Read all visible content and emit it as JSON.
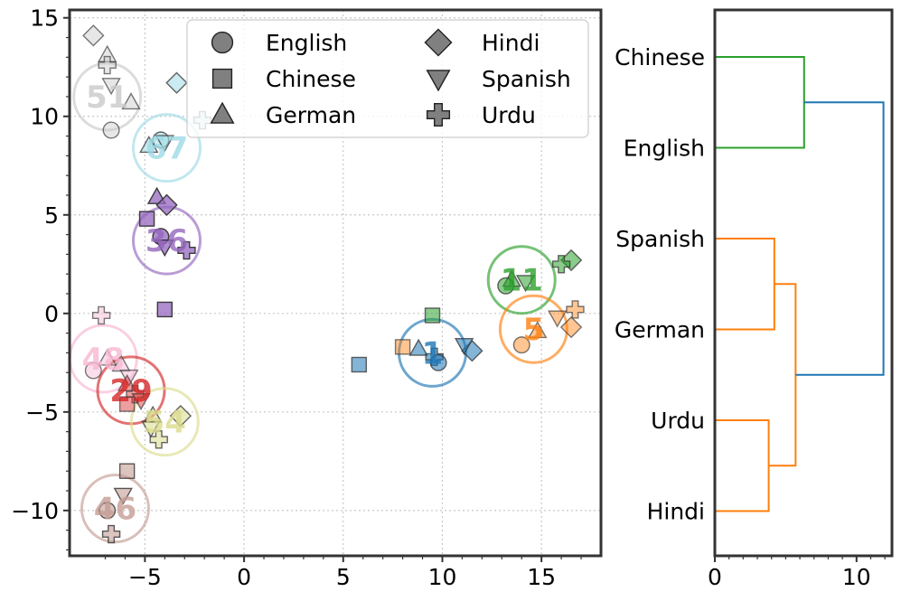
{
  "chart_data": [
    {
      "type": "scatter",
      "title": "",
      "xlabel": "",
      "ylabel": "",
      "xlim": [
        -8.8,
        18
      ],
      "ylim": [
        -12.3,
        15.4
      ],
      "xticks": [
        -5,
        0,
        5,
        10,
        15
      ],
      "xtick_labels": [
        "−5",
        "0",
        "5",
        "10",
        "15"
      ],
      "yticks": [
        15,
        10,
        5,
        0,
        -5,
        -10
      ],
      "ytick_labels": [
        "15",
        "10",
        "5",
        "0",
        "−5",
        "−10"
      ],
      "grid": true,
      "legend_position": "top-right",
      "legend": [
        {
          "label": "English",
          "marker": "circle"
        },
        {
          "label": "Chinese",
          "marker": "square"
        },
        {
          "label": "German",
          "marker": "triangle-up"
        },
        {
          "label": "Hindi",
          "marker": "diamond"
        },
        {
          "label": "Spanish",
          "marker": "triangle-down"
        },
        {
          "label": "Urdu",
          "marker": "plus"
        }
      ],
      "clusters": [
        {
          "label": "51",
          "center": [
            -6.9,
            11
          ],
          "color": "#c9c9c9",
          "opacity": 0.45,
          "points": [
            {
              "x": -7.6,
              "y": 14.1,
              "marker": "diamond"
            },
            {
              "x": -6.9,
              "y": 13.1,
              "marker": "triangle-up"
            },
            {
              "x": -6.9,
              "y": 12.6,
              "marker": "plus"
            },
            {
              "x": -6.7,
              "y": 11.6,
              "marker": "triangle-down"
            },
            {
              "x": -5.7,
              "y": 10.7,
              "marker": "triangle-up"
            },
            {
              "x": -6.7,
              "y": 9.3,
              "marker": "circle"
            }
          ]
        },
        {
          "label": "67",
          "center": [
            -3.9,
            8.4
          ],
          "color": "#9edae5",
          "opacity": 0.55,
          "points": [
            {
              "x": -3.4,
              "y": 11.7,
              "marker": "diamond"
            },
            {
              "x": -2.1,
              "y": 9.8,
              "marker": "plus"
            },
            {
              "x": -4.2,
              "y": 8.8,
              "marker": "circle"
            },
            {
              "x": -4,
              "y": 8.7,
              "marker": "triangle-down"
            },
            {
              "x": -4.8,
              "y": 8.5,
              "marker": "triangle-up"
            }
          ]
        },
        {
          "label": "36",
          "center": [
            -3.9,
            3.7
          ],
          "color": "#9467bd",
          "opacity": 0.75,
          "points": [
            {
              "x": -4.4,
              "y": 5.9,
              "marker": "triangle-up"
            },
            {
              "x": -3.9,
              "y": 5.5,
              "marker": "diamond"
            },
            {
              "x": -4.9,
              "y": 4.8,
              "marker": "square"
            },
            {
              "x": -4.2,
              "y": 3.9,
              "marker": "circle"
            },
            {
              "x": -4,
              "y": 3.4,
              "marker": "triangle-down"
            },
            {
              "x": -2.9,
              "y": 3.2,
              "marker": "plus"
            },
            {
              "x": -4,
              "y": 0.2,
              "marker": "square"
            }
          ]
        },
        {
          "label": "11",
          "center": [
            14,
            1.7
          ],
          "color": "#2ca02c",
          "opacity": 0.55,
          "points": [
            {
              "x": 16.5,
              "y": 2.7,
              "marker": "diamond"
            },
            {
              "x": 16,
              "y": 2.5,
              "marker": "plus"
            },
            {
              "x": 13.5,
              "y": 1.7,
              "marker": "triangle-up"
            },
            {
              "x": 14.2,
              "y": 1.6,
              "marker": "triangle-down"
            },
            {
              "x": 13.2,
              "y": 1.4,
              "marker": "circle"
            },
            {
              "x": 9.5,
              "y": -0.1,
              "marker": "square"
            }
          ]
        },
        {
          "label": "5",
          "center": [
            14.6,
            -0.8
          ],
          "color": "#ff7f0e",
          "opacity": 0.45,
          "points": [
            {
              "x": 16.7,
              "y": 0.2,
              "marker": "plus"
            },
            {
              "x": 15.8,
              "y": -0.2,
              "marker": "triangle-down"
            },
            {
              "x": 16.5,
              "y": -0.7,
              "marker": "diamond"
            },
            {
              "x": 14.8,
              "y": -0.9,
              "marker": "triangle-up"
            },
            {
              "x": 14,
              "y": -1.6,
              "marker": "circle"
            },
            {
              "x": 8,
              "y": -1.7,
              "marker": "square"
            }
          ]
        },
        {
          "label": "1",
          "center": [
            9.5,
            -2
          ],
          "color": "#1f77b4",
          "opacity": 0.55,
          "points": [
            {
              "x": 11.5,
              "y": -1.9,
              "marker": "diamond"
            },
            {
              "x": 11.1,
              "y": -1.6,
              "marker": "triangle-down"
            },
            {
              "x": 8.8,
              "y": -1.8,
              "marker": "triangle-up"
            },
            {
              "x": 9.6,
              "y": -2.2,
              "marker": "plus"
            },
            {
              "x": 9.8,
              "y": -2.5,
              "marker": "circle"
            },
            {
              "x": 5.8,
              "y": -2.6,
              "marker": "square"
            }
          ]
        },
        {
          "label": "48",
          "center": [
            -7.1,
            -2.3
          ],
          "color": "#f7b6d2",
          "opacity": 0.45,
          "points": [
            {
              "x": -7.2,
              "y": -0.1,
              "marker": "plus"
            },
            {
              "x": -6.9,
              "y": -2.3,
              "marker": "triangle-up"
            },
            {
              "x": -6.2,
              "y": -2.6,
              "marker": "triangle-up"
            },
            {
              "x": -7.6,
              "y": -2.9,
              "marker": "circle"
            },
            {
              "x": -5.8,
              "y": -3.2,
              "marker": "triangle-down"
            }
          ]
        },
        {
          "label": "29",
          "center": [
            -5.7,
            -3.9
          ],
          "color": "#d62728",
          "opacity": 0.45,
          "points": [
            {
              "x": -5.9,
              "y": -3.6,
              "marker": "triangle-up"
            },
            {
              "x": -5.5,
              "y": -4.1,
              "marker": "plus"
            },
            {
              "x": -5.9,
              "y": -4.6,
              "marker": "square"
            },
            {
              "x": -5.2,
              "y": -4.4,
              "marker": "triangle-down"
            }
          ]
        },
        {
          "label": "54",
          "center": [
            -4,
            -5.5
          ],
          "color": "#dbdb8d",
          "opacity": 0.55,
          "points": [
            {
              "x": -4.6,
              "y": -5.2,
              "marker": "triangle-up"
            },
            {
              "x": -3.2,
              "y": -5.2,
              "marker": "diamond"
            },
            {
              "x": -4.7,
              "y": -5.8,
              "marker": "triangle-down"
            },
            {
              "x": -4.3,
              "y": -6.4,
              "marker": "plus"
            }
          ]
        },
        {
          "label": "46",
          "center": [
            -6.5,
            -9.9
          ],
          "color": "#c49c94",
          "opacity": 0.6,
          "points": [
            {
              "x": -5.9,
              "y": -8,
              "marker": "square"
            },
            {
              "x": -6.1,
              "y": -9.2,
              "marker": "triangle-down"
            },
            {
              "x": -6.9,
              "y": -10,
              "marker": "circle"
            },
            {
              "x": -6.7,
              "y": -11.2,
              "marker": "plus"
            }
          ]
        }
      ]
    },
    {
      "type": "dendrogram",
      "title": "",
      "xlabel": "",
      "ylabel": "",
      "xlim": [
        0,
        12.5
      ],
      "xticks": [
        0,
        10
      ],
      "xtick_labels": [
        "0",
        "10"
      ],
      "leaves": [
        "Chinese",
        "English",
        "Spanish",
        "German",
        "Urdu",
        "Hindi"
      ],
      "merges": [
        {
          "left": "Urdu",
          "right": "Hindi",
          "height": 3.8,
          "color": "#ff7f0e"
        },
        {
          "left": "Spanish",
          "right": "German",
          "height": 4.2,
          "color": "#ff7f0e"
        },
        {
          "left": "Spanish+German",
          "right": "Urdu+Hindi",
          "height": 5.7,
          "color": "#ff7f0e"
        },
        {
          "left": "Chinese",
          "right": "English",
          "height": 6.3,
          "color": "#2ca02c"
        },
        {
          "left": "Chinese+English",
          "right": "Spanish+German+Urdu+Hindi",
          "height": 11.9,
          "color": "#1f77b4"
        }
      ]
    }
  ]
}
